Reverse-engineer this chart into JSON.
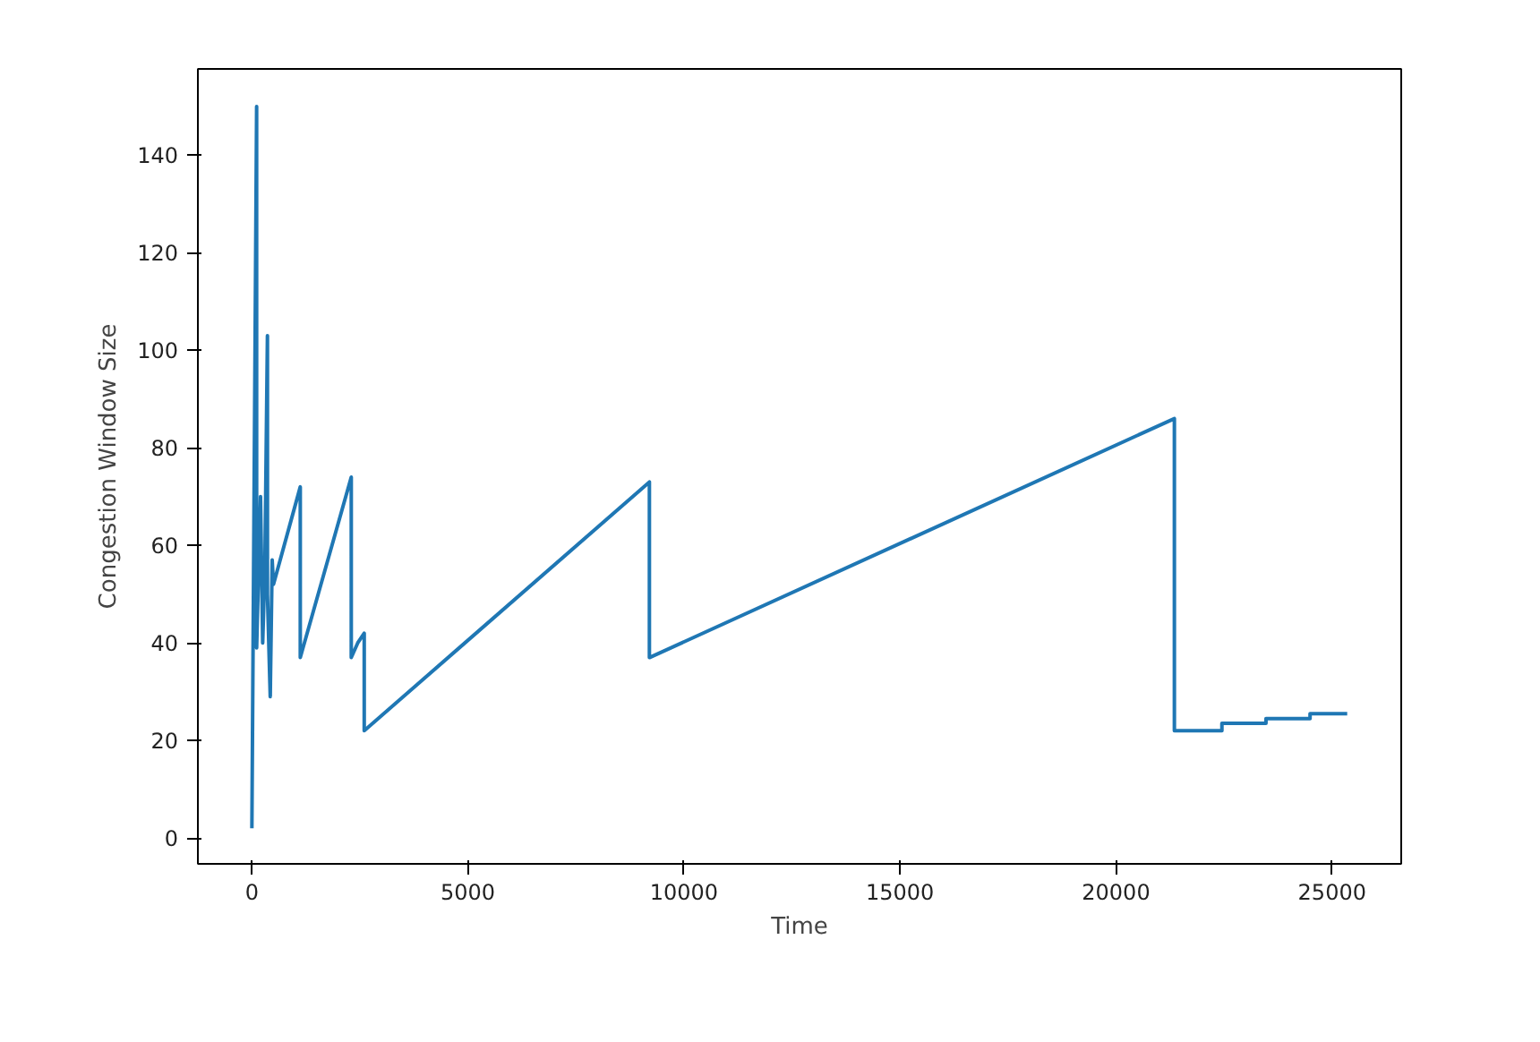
{
  "chart_data": {
    "type": "line",
    "xlabel": "Time",
    "ylabel": "Congestion Window Size",
    "x": [
      0,
      110,
      110,
      200,
      250,
      300,
      360,
      360,
      425,
      470,
      500,
      1120,
      1120,
      2300,
      2300,
      2450,
      2600,
      2600,
      9200,
      9200,
      21350,
      21350,
      22450,
      22450,
      23470,
      23470,
      24490,
      24490,
      25350
    ],
    "series": [
      {
        "color": "#1f77b4",
        "values": [
          2,
          150,
          39,
          70,
          40,
          55,
          103,
          50,
          29,
          57,
          52,
          72,
          37,
          74,
          37,
          40,
          42,
          22,
          73,
          37,
          86,
          22,
          22,
          23.5,
          23.5,
          24.5,
          24.5,
          25.5,
          25.5
        ]
      }
    ],
    "xlim": [
      -1250,
      26600
    ],
    "ylim": [
      -5.3,
      157.7
    ],
    "xticks": [
      0,
      5000,
      10000,
      15000,
      20000,
      25000
    ],
    "yticks": [
      0,
      20,
      40,
      60,
      80,
      100,
      120,
      140
    ],
    "grid": false,
    "line_style": "solid",
    "marker": "none"
  }
}
